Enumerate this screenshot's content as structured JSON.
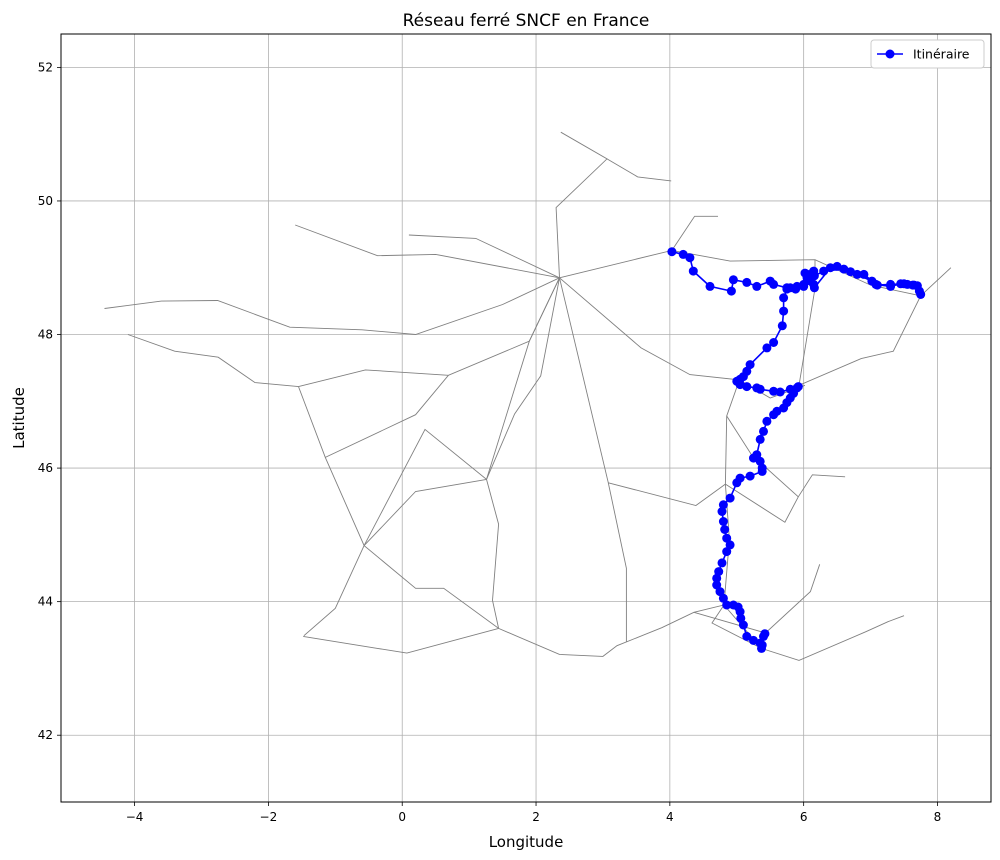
{
  "chart_data": {
    "type": "line",
    "title": "Réseau ferré SNCF en France",
    "xlabel": "Longitude",
    "ylabel": "Latitude",
    "xlim": [
      -5.1,
      8.8
    ],
    "ylim": [
      41.0,
      52.5
    ],
    "xticks": [
      -4,
      -2,
      0,
      2,
      4,
      6,
      8
    ],
    "yticks": [
      42,
      44,
      46,
      48,
      50,
      52
    ],
    "grid": true,
    "legend": {
      "placement": "top-right",
      "entries": [
        "Itinéraire"
      ]
    },
    "colors": {
      "route": "#0000ff",
      "network": "#808080",
      "grid": "#b0b0b0"
    },
    "network": [
      [
        [
          -4.45,
          48.39
        ],
        [
          -3.6,
          48.5
        ],
        [
          -2.76,
          48.51
        ],
        [
          -1.68,
          48.11
        ],
        [
          -0.6,
          48.07
        ],
        [
          0.2,
          48.0
        ],
        [
          1.5,
          48.45
        ],
        [
          2.35,
          48.85
        ]
      ],
      [
        [
          -4.1,
          48.0
        ],
        [
          -3.4,
          47.75
        ],
        [
          -2.75,
          47.66
        ],
        [
          -2.2,
          47.28
        ],
        [
          -1.55,
          47.22
        ],
        [
          -0.55,
          47.47
        ],
        [
          0.69,
          47.39
        ],
        [
          1.9,
          47.9
        ],
        [
          2.35,
          48.85
        ]
      ],
      [
        [
          -1.55,
          47.22
        ],
        [
          -1.15,
          46.16
        ],
        [
          -0.57,
          44.84
        ],
        [
          0.2,
          44.2
        ],
        [
          0.62,
          44.2
        ],
        [
          1.44,
          43.6
        ],
        [
          2.35,
          43.21
        ],
        [
          3.0,
          43.18
        ],
        [
          3.21,
          43.34
        ],
        [
          3.88,
          43.61
        ],
        [
          4.36,
          43.84
        ],
        [
          4.81,
          43.95
        ],
        [
          5.37,
          43.3
        ]
      ],
      [
        [
          -1.47,
          43.49
        ],
        [
          -1.0,
          43.9
        ],
        [
          -0.57,
          44.84
        ],
        [
          0.34,
          46.58
        ],
        [
          1.26,
          45.83
        ],
        [
          1.9,
          47.9
        ],
        [
          2.35,
          48.85
        ]
      ],
      [
        [
          -1.48,
          43.48
        ],
        [
          -0.37,
          43.3
        ],
        [
          0.07,
          43.23
        ],
        [
          1.44,
          43.6
        ]
      ],
      [
        [
          1.44,
          43.6
        ],
        [
          1.35,
          44.02
        ],
        [
          1.44,
          45.16
        ],
        [
          1.26,
          45.83
        ],
        [
          1.68,
          46.81
        ],
        [
          2.07,
          47.38
        ],
        [
          2.35,
          48.85
        ]
      ],
      [
        [
          2.35,
          48.85
        ],
        [
          3.57,
          47.8
        ],
        [
          4.3,
          47.4
        ],
        [
          5.04,
          47.32
        ],
        [
          4.85,
          46.78
        ],
        [
          4.83,
          45.76
        ],
        [
          4.89,
          44.93
        ],
        [
          4.81,
          43.95
        ],
        [
          4.63,
          43.68
        ],
        [
          5.37,
          43.3
        ]
      ],
      [
        [
          2.35,
          48.85
        ],
        [
          3.08,
          45.78
        ],
        [
          3.35,
          44.5
        ],
        [
          3.35,
          43.4
        ]
      ],
      [
        [
          2.35,
          48.85
        ],
        [
          2.3,
          49.9
        ],
        [
          3.06,
          50.63
        ],
        [
          2.37,
          51.03
        ]
      ],
      [
        [
          2.35,
          48.85
        ],
        [
          1.1,
          49.44
        ],
        [
          0.1,
          49.49
        ]
      ],
      [
        [
          2.35,
          48.85
        ],
        [
          0.5,
          49.2
        ],
        [
          -0.37,
          49.18
        ],
        [
          -1.6,
          49.64
        ]
      ],
      [
        [
          2.35,
          48.85
        ],
        [
          4.03,
          49.26
        ],
        [
          4.9,
          49.1
        ],
        [
          6.17,
          49.12
        ],
        [
          7.0,
          48.74
        ],
        [
          7.75,
          48.58
        ]
      ],
      [
        [
          4.03,
          49.26
        ],
        [
          4.37,
          49.77
        ],
        [
          4.72,
          49.77
        ]
      ],
      [
        [
          5.93,
          47.24
        ],
        [
          6.86,
          47.64
        ],
        [
          7.34,
          47.75
        ],
        [
          7.75,
          48.58
        ],
        [
          8.2,
          49.0
        ]
      ],
      [
        [
          4.83,
          45.76
        ],
        [
          5.72,
          45.19
        ],
        [
          5.92,
          45.57
        ],
        [
          6.13,
          45.9
        ],
        [
          6.62,
          45.87
        ]
      ],
      [
        [
          4.83,
          45.76
        ],
        [
          4.39,
          45.44
        ],
        [
          3.08,
          45.78
        ]
      ],
      [
        [
          5.37,
          43.3
        ],
        [
          5.93,
          43.12
        ],
        [
          6.93,
          43.55
        ],
        [
          7.26,
          43.7
        ],
        [
          7.5,
          43.79
        ]
      ],
      [
        [
          4.36,
          43.84
        ],
        [
          5.43,
          43.53
        ],
        [
          6.1,
          44.15
        ],
        [
          6.24,
          44.56
        ]
      ],
      [
        [
          0.69,
          47.39
        ],
        [
          0.2,
          46.8
        ],
        [
          -1.15,
          46.16
        ]
      ],
      [
        [
          1.26,
          45.83
        ],
        [
          0.2,
          45.65
        ],
        [
          -0.57,
          44.84
        ]
      ],
      [
        [
          3.06,
          50.63
        ],
        [
          3.52,
          50.36
        ],
        [
          4.02,
          50.3
        ]
      ],
      [
        [
          5.04,
          47.32
        ],
        [
          5.5,
          47.05
        ],
        [
          6.02,
          47.24
        ]
      ],
      [
        [
          4.85,
          46.78
        ],
        [
          5.22,
          46.2
        ],
        [
          5.92,
          45.57
        ]
      ],
      [
        [
          6.17,
          49.12
        ],
        [
          6.17,
          48.69
        ],
        [
          5.93,
          47.24
        ]
      ]
    ],
    "route": {
      "name": "Itinéraire",
      "x": [
        4.03,
        4.2,
        4.3,
        4.35,
        4.6,
        4.92,
        4.95,
        5.15,
        5.3,
        5.5,
        5.55,
        5.75,
        5.88,
        6.0,
        6.02,
        6.05,
        6.1,
        6.15,
        6.16,
        6.4,
        6.5,
        6.7,
        6.8,
        7.02,
        7.08,
        7.3,
        7.45,
        7.55,
        7.63,
        7.7,
        7.75,
        7.73,
        7.65,
        7.5,
        7.3,
        7.1,
        6.9,
        6.6,
        6.3,
        6.16,
        6.15,
        6.1,
        6.05,
        6.0,
        5.9,
        5.8,
        5.75,
        5.7,
        5.7,
        5.68,
        5.55,
        5.45,
        5.2,
        5.15,
        5.1,
        5.05,
        5.0,
        5.05,
        5.15,
        5.3,
        5.35,
        5.55,
        5.65,
        5.8,
        5.92,
        5.9,
        5.85,
        5.8,
        5.75,
        5.7,
        5.6,
        5.55,
        5.45,
        5.4,
        5.35,
        5.3,
        5.25,
        5.35,
        5.38,
        5.38,
        5.2,
        5.05,
        5.0,
        4.9,
        4.8,
        4.78,
        4.8,
        4.82,
        4.85,
        4.9,
        4.85,
        4.78,
        4.73,
        4.7,
        4.7,
        4.75,
        4.8,
        4.85,
        4.95,
        5.02,
        5.05,
        5.06,
        5.1,
        5.15,
        5.25,
        5.35,
        5.4,
        5.42,
        5.38,
        5.37
      ],
      "y": [
        49.24,
        49.2,
        49.15,
        48.95,
        48.72,
        48.65,
        48.82,
        48.78,
        48.72,
        48.8,
        48.75,
        48.7,
        48.68,
        48.72,
        48.92,
        48.9,
        48.8,
        48.75,
        48.7,
        49.0,
        49.02,
        48.94,
        48.9,
        48.8,
        48.75,
        48.72,
        48.76,
        48.75,
        48.74,
        48.73,
        48.6,
        48.65,
        48.74,
        48.76,
        48.75,
        48.74,
        48.9,
        48.98,
        48.95,
        48.88,
        48.95,
        48.9,
        48.85,
        48.75,
        48.72,
        48.7,
        48.68,
        48.55,
        48.35,
        48.13,
        47.88,
        47.8,
        47.55,
        47.45,
        47.37,
        47.33,
        47.3,
        47.25,
        47.22,
        47.2,
        47.18,
        47.15,
        47.14,
        47.18,
        47.22,
        47.2,
        47.12,
        47.05,
        46.98,
        46.9,
        46.85,
        46.8,
        46.7,
        46.55,
        46.43,
        46.2,
        46.15,
        46.1,
        46.0,
        45.95,
        45.88,
        45.85,
        45.78,
        45.55,
        45.45,
        45.35,
        45.2,
        45.08,
        44.95,
        44.85,
        44.75,
        44.58,
        44.45,
        44.35,
        44.25,
        44.15,
        44.05,
        43.95,
        43.95,
        43.92,
        43.85,
        43.75,
        43.65,
        43.48,
        43.42,
        43.38,
        43.48,
        43.52,
        43.35,
        43.3
      ]
    }
  }
}
